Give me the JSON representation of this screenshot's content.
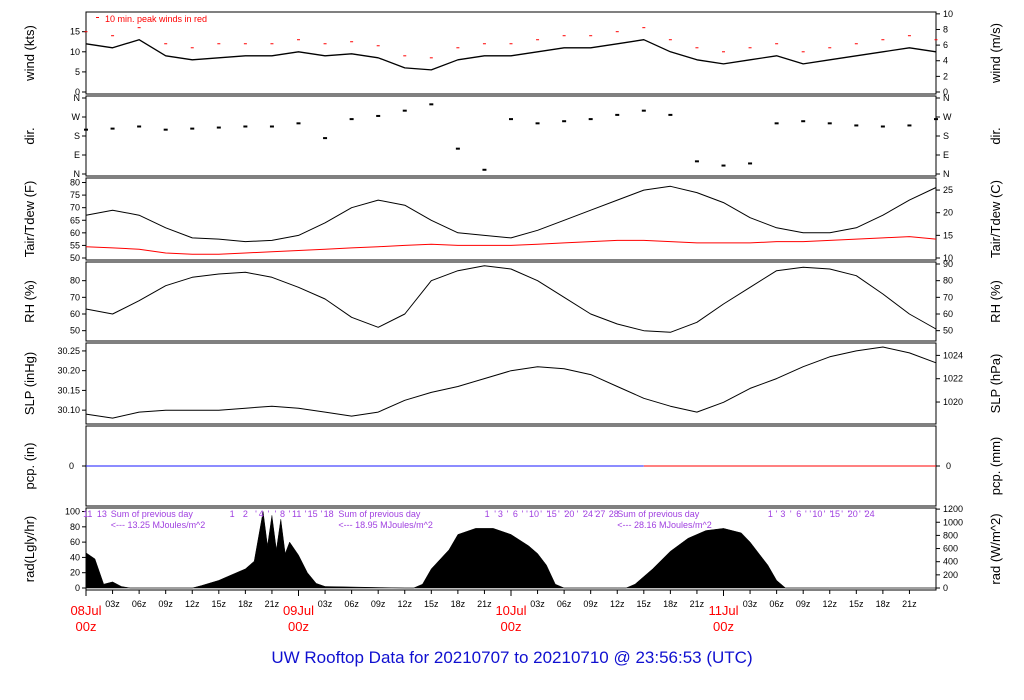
{
  "footer": {
    "title": "UW Rooftop Data for 20210707  to  20210710 @ 23:56:53  (UTC)"
  },
  "colors": {
    "red": "#ff0000",
    "blue": "#1a1aff",
    "purple": "#a040e0",
    "black": "#000000"
  },
  "chart_data": [
    {
      "id": "wind",
      "type": "line",
      "ylabel_left": "wind (kts)",
      "ylabel_right": "wind (m/s)",
      "ylim": [
        0,
        19.4
      ],
      "yticks_left": [
        0,
        5,
        10,
        15
      ],
      "yticks_right": [
        0,
        2,
        4,
        6,
        8,
        10
      ],
      "legend_text": "10 min. peak winds in red",
      "series": [
        {
          "name": "wind speed",
          "color": "#000000",
          "x": [
            0,
            3,
            6,
            9,
            12,
            15,
            18,
            21,
            24,
            27,
            30,
            33,
            36,
            39,
            42,
            45,
            48,
            51,
            54,
            57,
            60,
            63,
            66,
            69,
            72,
            75,
            78,
            81,
            84,
            87,
            90,
            93,
            96
          ],
          "y": [
            12,
            11,
            13,
            9,
            8,
            8.5,
            9,
            9,
            10,
            9,
            9.5,
            8.5,
            6,
            5.5,
            8,
            9,
            9,
            10,
            11,
            11,
            12,
            13,
            10,
            8,
            7,
            8,
            9,
            7,
            8,
            9,
            10,
            11,
            10
          ]
        },
        {
          "name": "10 min. peak winds",
          "color": "#ff0000",
          "x": [
            0,
            3,
            6,
            9,
            12,
            15,
            18,
            21,
            24,
            27,
            30,
            33,
            36,
            39,
            42,
            45,
            48,
            51,
            54,
            57,
            60,
            63,
            66,
            69,
            72,
            75,
            78,
            81,
            84,
            87,
            90,
            93,
            96
          ],
          "y": [
            15,
            14,
            16,
            12,
            11,
            12,
            12,
            12,
            13,
            12,
            12.5,
            11.5,
            9,
            8.5,
            11,
            12,
            12,
            13,
            14,
            14,
            15,
            16,
            13,
            11,
            10,
            11,
            12,
            10,
            11,
            12,
            13,
            14,
            13
          ]
        }
      ]
    },
    {
      "id": "dir",
      "type": "scatter",
      "ylabel_left": "dir.",
      "ylabel_right": "dir.",
      "ylim": [
        0,
        360
      ],
      "ytick_labels": [
        "N",
        "E",
        "S",
        "W",
        "N"
      ],
      "ytick_values": [
        0,
        90,
        180,
        270,
        360
      ],
      "series": [
        {
          "name": "wind direction",
          "color": "#000000",
          "x": [
            0,
            3,
            6,
            9,
            12,
            15,
            18,
            21,
            24,
            27,
            30,
            33,
            36,
            39,
            42,
            45,
            48,
            51,
            54,
            57,
            60,
            63,
            66,
            69,
            72,
            75,
            78,
            81,
            84,
            87,
            90,
            93,
            96
          ],
          "y": [
            210,
            215,
            225,
            210,
            215,
            220,
            225,
            225,
            240,
            170,
            260,
            275,
            300,
            330,
            120,
            20,
            260,
            240,
            250,
            260,
            280,
            300,
            280,
            60,
            40,
            50,
            240,
            250,
            240,
            230,
            225,
            230,
            260
          ]
        }
      ]
    },
    {
      "id": "temp",
      "type": "line",
      "ylabel_left": "Tair/Tdew (F)",
      "ylabel_right": "Tair/Tdew (C)",
      "ylim": [
        50,
        81
      ],
      "yticks_left": [
        50,
        55,
        60,
        65,
        70,
        75,
        80
      ],
      "yticks_right": [
        10,
        15,
        20,
        25
      ],
      "series": [
        {
          "name": "Tair",
          "color": "#000000",
          "x": [
            0,
            3,
            6,
            9,
            12,
            15,
            18,
            21,
            24,
            27,
            30,
            33,
            36,
            39,
            42,
            45,
            48,
            51,
            54,
            57,
            60,
            63,
            66,
            69,
            72,
            75,
            78,
            81,
            84,
            87,
            90,
            93,
            96
          ],
          "y": [
            67,
            69,
            67,
            62,
            58,
            57.5,
            56.5,
            57,
            59,
            64,
            70,
            73,
            71,
            65,
            60,
            59,
            58,
            61,
            65,
            69,
            73,
            77,
            78.5,
            76,
            72,
            66,
            62,
            60,
            60,
            62,
            67,
            73,
            78
          ]
        },
        {
          "name": "Tdew",
          "color": "#ff0000",
          "x": [
            0,
            3,
            6,
            9,
            12,
            15,
            18,
            21,
            24,
            27,
            30,
            33,
            36,
            39,
            42,
            45,
            48,
            51,
            54,
            57,
            60,
            63,
            66,
            69,
            72,
            75,
            78,
            81,
            84,
            87,
            90,
            93,
            96
          ],
          "y": [
            54.5,
            54,
            53.5,
            52,
            51.5,
            51.5,
            52,
            52.5,
            53,
            53.5,
            54,
            54.5,
            55,
            55.5,
            55,
            55,
            55,
            55.5,
            56,
            56.5,
            57,
            57,
            56.5,
            56,
            56,
            56,
            56.5,
            56.5,
            57,
            57.5,
            58,
            58.5,
            57.5
          ]
        }
      ]
    },
    {
      "id": "rh",
      "type": "line",
      "ylabel_left": "RH (%)",
      "ylabel_right": "RH (%)",
      "ylim": [
        45,
        90
      ],
      "yticks_left": [
        50,
        60,
        70,
        80
      ],
      "yticks_right": [
        50,
        60,
        70,
        80,
        90
      ],
      "series": [
        {
          "name": "RH",
          "color": "#000000",
          "x": [
            0,
            3,
            6,
            9,
            12,
            15,
            18,
            21,
            24,
            27,
            30,
            33,
            36,
            39,
            42,
            45,
            48,
            51,
            54,
            57,
            60,
            63,
            66,
            69,
            72,
            75,
            78,
            81,
            84,
            87,
            90,
            93,
            96
          ],
          "y": [
            63,
            60,
            68,
            77,
            82,
            84,
            85,
            82,
            76,
            69,
            58,
            52,
            60,
            80,
            86,
            89,
            87,
            80,
            70,
            60,
            54,
            50,
            49,
            55,
            66,
            76,
            86,
            88,
            87,
            83,
            72,
            60,
            51
          ]
        }
      ]
    },
    {
      "id": "slp",
      "type": "line",
      "ylabel_left": "SLP (inHg)",
      "ylabel_right": "SLP (hPa)",
      "ylim": [
        30.07,
        30.265
      ],
      "yticks_left": [
        30.1,
        30.15,
        30.2,
        30.25
      ],
      "yticks_right": [
        1020,
        1022,
        1024
      ],
      "ytick_labels_left": [
        "30.10",
        "30.15",
        "30.20",
        "30.25"
      ],
      "series": [
        {
          "name": "SLP",
          "color": "#000000",
          "x": [
            0,
            3,
            6,
            9,
            12,
            15,
            18,
            21,
            24,
            27,
            30,
            33,
            36,
            39,
            42,
            45,
            48,
            51,
            54,
            57,
            60,
            63,
            66,
            69,
            72,
            75,
            78,
            81,
            84,
            87,
            90,
            93,
            96
          ],
          "y": [
            30.09,
            30.08,
            30.095,
            30.1,
            30.1,
            30.1,
            30.105,
            30.11,
            30.105,
            30.095,
            30.085,
            30.095,
            30.125,
            30.145,
            30.16,
            30.18,
            30.2,
            30.21,
            30.205,
            30.19,
            30.16,
            30.13,
            30.11,
            30.095,
            30.12,
            30.155,
            30.18,
            30.21,
            30.235,
            30.25,
            30.26,
            30.245,
            30.22
          ]
        }
      ]
    },
    {
      "id": "pcp",
      "type": "line",
      "ylabel_left": "pcp. (in)",
      "ylabel_right": "pcp. (mm)",
      "ytick_left": "0",
      "ytick_right": "0",
      "series": [
        {
          "name": "precip earlier",
          "color": "#1a1aff",
          "x": [
            0,
            63
          ],
          "y": [
            0,
            0
          ]
        },
        {
          "name": "precip recent",
          "color": "#ff0000",
          "x": [
            63,
            96
          ],
          "y": [
            0,
            0
          ]
        }
      ]
    },
    {
      "id": "rad",
      "type": "area",
      "ylabel_left": "rad(Lgly/hr)",
      "ylabel_right": "rad (W/m^2)",
      "ylim": [
        0,
        102
      ],
      "yticks_left": [
        0,
        20,
        40,
        60,
        80,
        100
      ],
      "yticks_right": [
        0,
        200,
        400,
        600,
        800,
        1000,
        1200
      ],
      "series": [
        {
          "name": "solar radiation",
          "color": "#000000",
          "x": [
            0,
            1,
            2,
            3,
            4,
            5,
            6,
            12,
            13,
            15,
            16,
            17,
            18,
            19,
            20,
            20.5,
            21,
            21.5,
            22,
            22.5,
            23,
            24,
            25,
            26,
            27,
            36,
            37,
            38,
            39,
            41,
            42,
            44,
            46,
            48,
            50,
            51,
            52,
            53,
            54,
            60,
            61,
            62,
            64,
            66,
            68,
            70,
            72,
            74,
            75,
            76,
            77,
            78,
            79,
            84,
            96
          ],
          "y": [
            46,
            38,
            5,
            8,
            2,
            0,
            0,
            0,
            3,
            10,
            15,
            20,
            25,
            35,
            100,
            55,
            95,
            50,
            90,
            45,
            60,
            43,
            20,
            6,
            2,
            0,
            0,
            5,
            25,
            50,
            70,
            78,
            78,
            70,
            55,
            45,
            30,
            5,
            0,
            0,
            0,
            5,
            25,
            48,
            65,
            75,
            78,
            72,
            60,
            45,
            30,
            10,
            0,
            0,
            0
          ]
        }
      ],
      "day_annotations": [
        {
          "label": "Sum of previous day",
          "value": "<--- 13.25 MJoules/m^2"
        },
        {
          "label": "Sum of previous day",
          "value": "<--- 18.95 MJoules/m^2"
        },
        {
          "label": "Sum of previous day",
          "value": "<--- 28.16 MJoules/m^2"
        }
      ],
      "hour_labels": [
        {
          "x": 0.2,
          "t": "11"
        },
        {
          "x": 1.8,
          "t": "13"
        },
        {
          "x": 16.5,
          "t": "1"
        },
        {
          "x": 18,
          "t": "2"
        },
        {
          "x": 19.2,
          "t": "'"
        },
        {
          "x": 19.8,
          "t": "4"
        },
        {
          "x": 20.6,
          "t": "'"
        },
        {
          "x": 21.4,
          "t": "'"
        },
        {
          "x": 22.2,
          "t": "8"
        },
        {
          "x": 23.0,
          "t": "'"
        },
        {
          "x": 23.8,
          "t": "11"
        },
        {
          "x": 24.8,
          "t": "'"
        },
        {
          "x": 25.6,
          "t": "15"
        },
        {
          "x": 26.6,
          "t": "'"
        },
        {
          "x": 27.4,
          "t": "18"
        },
        {
          "x": 45.3,
          "t": "1"
        },
        {
          "x": 46.2,
          "t": "'"
        },
        {
          "x": 46.8,
          "t": "3"
        },
        {
          "x": 47.6,
          "t": "'"
        },
        {
          "x": 48.5,
          "t": "6"
        },
        {
          "x": 49.3,
          "t": "'"
        },
        {
          "x": 49.8,
          "t": "'"
        },
        {
          "x": 50.6,
          "t": "10"
        },
        {
          "x": 51.4,
          "t": "'"
        },
        {
          "x": 52.1,
          "t": "'"
        },
        {
          "x": 52.6,
          "t": "15"
        },
        {
          "x": 53.4,
          "t": "'"
        },
        {
          "x": 54.1,
          "t": "'"
        },
        {
          "x": 54.6,
          "t": "20"
        },
        {
          "x": 55.5,
          "t": "'"
        },
        {
          "x": 56.2,
          "t": "'"
        },
        {
          "x": 56.7,
          "t": "24"
        },
        {
          "x": 57.5,
          "t": "'"
        },
        {
          "x": 58.1,
          "t": "27"
        },
        {
          "x": 59.6,
          "t": "28"
        },
        {
          "x": 77.3,
          "t": "1"
        },
        {
          "x": 78.0,
          "t": "'"
        },
        {
          "x": 78.7,
          "t": "3"
        },
        {
          "x": 79.6,
          "t": "'"
        },
        {
          "x": 80.5,
          "t": "6"
        },
        {
          "x": 81.3,
          "t": "'"
        },
        {
          "x": 81.8,
          "t": "'"
        },
        {
          "x": 82.6,
          "t": "10"
        },
        {
          "x": 83.4,
          "t": "'"
        },
        {
          "x": 84.1,
          "t": "'"
        },
        {
          "x": 84.6,
          "t": "15"
        },
        {
          "x": 85.4,
          "t": "'"
        },
        {
          "x": 86.1,
          "t": "'"
        },
        {
          "x": 86.6,
          "t": "20"
        },
        {
          "x": 87.4,
          "t": "'"
        },
        {
          "x": 88.0,
          "t": "'"
        },
        {
          "x": 88.5,
          "t": "24"
        }
      ]
    }
  ],
  "x_axis": {
    "ticks": [
      {
        "x": 3,
        "label": "03z"
      },
      {
        "x": 6,
        "label": "06z"
      },
      {
        "x": 9,
        "label": "09z"
      },
      {
        "x": 12,
        "label": "12z"
      },
      {
        "x": 15,
        "label": "15z"
      },
      {
        "x": 18,
        "label": "18z"
      },
      {
        "x": 21,
        "label": "21z"
      },
      {
        "x": 27,
        "label": "03z"
      },
      {
        "x": 30,
        "label": "06z"
      },
      {
        "x": 33,
        "label": "09z"
      },
      {
        "x": 36,
        "label": "12z"
      },
      {
        "x": 39,
        "label": "15z"
      },
      {
        "x": 42,
        "label": "18z"
      },
      {
        "x": 45,
        "label": "21z"
      },
      {
        "x": 51,
        "label": "03z"
      },
      {
        "x": 54,
        "label": "06z"
      },
      {
        "x": 57,
        "label": "09z"
      },
      {
        "x": 60,
        "label": "12z"
      },
      {
        "x": 63,
        "label": "15z"
      },
      {
        "x": 66,
        "label": "18z"
      },
      {
        "x": 69,
        "label": "21z"
      },
      {
        "x": 75,
        "label": "03z"
      },
      {
        "x": 78,
        "label": "06z"
      },
      {
        "x": 81,
        "label": "09z"
      },
      {
        "x": 84,
        "label": "12z"
      },
      {
        "x": 87,
        "label": "15z"
      },
      {
        "x": 90,
        "label": "18z"
      },
      {
        "x": 93,
        "label": "21z"
      }
    ],
    "day_labels": [
      {
        "x": 0,
        "date": "08Jul",
        "time": "00z"
      },
      {
        "x": 24,
        "date": "09Jul",
        "time": "00z"
      },
      {
        "x": 48,
        "date": "10Jul",
        "time": "00z"
      },
      {
        "x": 72,
        "date": "11Jul",
        "time": "00z"
      }
    ]
  }
}
